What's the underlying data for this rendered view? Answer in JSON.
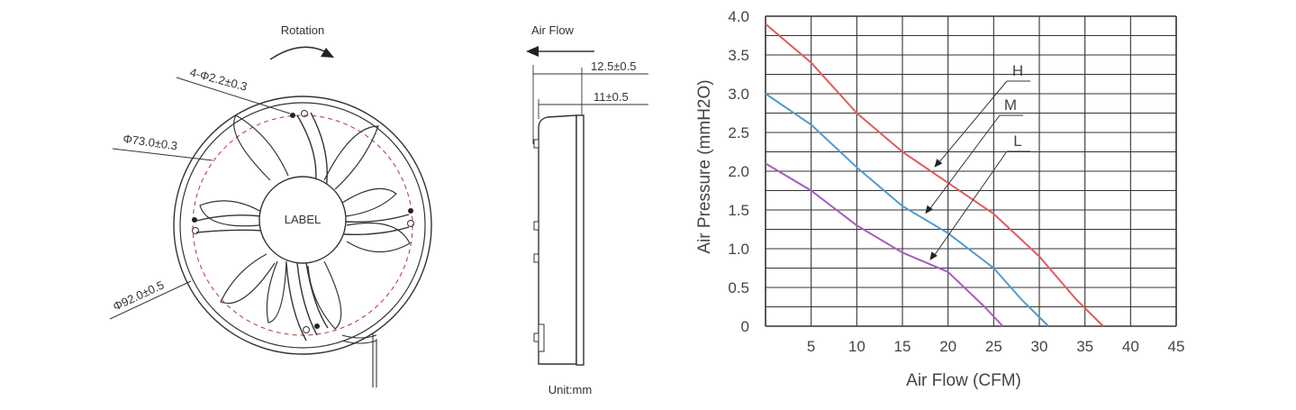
{
  "front_view": {
    "rotation_label": "Rotation",
    "hole_dim": "4-Φ2.2±0.3",
    "inner_dia": "Φ73.0±0.3",
    "outer_dia": "Φ92.0±0.5",
    "hub_label": "LABEL"
  },
  "side_view": {
    "airflow_label": "Air Flow",
    "depth_outer": "12.5±0.5",
    "depth_inner": "11±0.5",
    "unit_label": "Unit:mm"
  },
  "colors": {
    "H": "#e05a5e",
    "M": "#4f9bd0",
    "L": "#a55ac0",
    "grid": "#333333",
    "line": "#333333"
  },
  "chart_data": {
    "type": "line",
    "xlabel": "Air Flow (CFM)",
    "ylabel": "Air Pressure (mmH2O)",
    "xlim": [
      0,
      45
    ],
    "ylim": [
      0,
      4.0
    ],
    "x_ticks": [
      "5",
      "10",
      "15",
      "20",
      "25",
      "30",
      "35",
      "40",
      "45"
    ],
    "y_ticks": [
      "0",
      "0.5",
      "1.0",
      "1.5",
      "2.0",
      "2.5",
      "3.0",
      "3.5",
      "4.0"
    ],
    "grid": true,
    "series": [
      {
        "name": "H",
        "x": [
          0,
          5,
          10,
          15,
          20,
          25,
          30,
          34,
          37
        ],
        "y": [
          3.9,
          3.4,
          2.75,
          2.25,
          1.85,
          1.45,
          0.9,
          0.35,
          0
        ]
      },
      {
        "name": "M",
        "x": [
          0,
          5,
          10,
          15,
          20,
          25,
          28,
          31
        ],
        "y": [
          3.0,
          2.6,
          2.05,
          1.55,
          1.2,
          0.75,
          0.35,
          0
        ]
      },
      {
        "name": "L",
        "x": [
          0,
          5,
          10,
          15,
          20,
          24,
          26
        ],
        "y": [
          2.1,
          1.75,
          1.3,
          0.95,
          0.7,
          0.25,
          0
        ]
      }
    ]
  }
}
